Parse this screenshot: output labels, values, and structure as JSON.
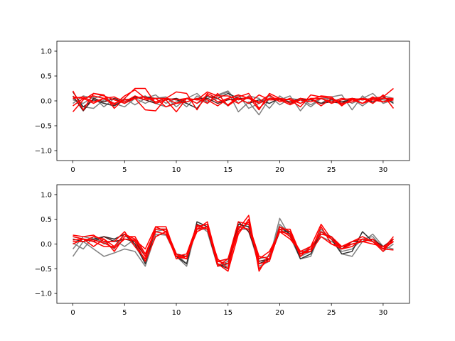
{
  "chart_data": [
    {
      "type": "line",
      "title": "",
      "xlabel": "",
      "ylabel": "",
      "xlim": [
        -1.55,
        32.55
      ],
      "ylim": [
        -1.2,
        1.2
      ],
      "x_ticks": [
        0,
        5,
        10,
        15,
        20,
        25,
        30
      ],
      "y_ticks": [
        -1.0,
        -0.5,
        0.0,
        0.5,
        1.0
      ],
      "x_tick_labels": [
        "0",
        "5",
        "10",
        "15",
        "20",
        "25",
        "30"
      ],
      "y_tick_labels": [
        "−1.0",
        "−0.5",
        "0.0",
        "0.5",
        "1.0"
      ],
      "grid": false,
      "x": [
        0,
        1,
        2,
        3,
        4,
        5,
        6,
        7,
        8,
        9,
        10,
        11,
        12,
        13,
        14,
        15,
        16,
        17,
        18,
        19,
        20,
        21,
        22,
        23,
        24,
        25,
        26,
        27,
        28,
        29,
        30,
        31
      ],
      "series": [
        {
          "color": "#808080",
          "values": [
            0.05,
            -0.12,
            -0.15,
            0.02,
            -0.05,
            -0.12,
            0.05,
            0.1,
            -0.05,
            -0.12,
            -0.02,
            0.05,
            0.15,
            -0.05,
            0.1,
            0.18,
            -0.22,
            -0.02,
            -0.28,
            0.05,
            0.02,
            0.1,
            -0.2,
            0.05,
            -0.05,
            0.08,
            0.12,
            -0.18,
            0.1,
            -0.05,
            0.1,
            0.05
          ]
        },
        {
          "color": "#808080",
          "values": [
            -0.05,
            0.1,
            0.05,
            0.12,
            -0.1,
            0.05,
            -0.08,
            0.05,
            0.12,
            -0.05,
            0.05,
            -0.12,
            0.1,
            -0.02,
            0.05,
            -0.1,
            0.12,
            -0.15,
            -0.05,
            0.1,
            -0.08,
            0.05,
            0.02,
            -0.12,
            0.05,
            -0.02,
            0.05,
            -0.05,
            0.05,
            0.15,
            -0.05,
            0.02
          ]
        },
        {
          "color": "#808080",
          "values": [
            0.02,
            -0.05,
            0.08,
            -0.12,
            0.05,
            0.02,
            0.05,
            -0.05,
            0.05,
            0.08,
            -0.12,
            0.05,
            -0.05,
            0.05,
            0.12,
            0.2,
            -0.05,
            0.1,
            0.05,
            -0.15,
            0.1,
            -0.05,
            0.05,
            -0.08,
            0.05,
            0.05,
            -0.02,
            0.05,
            -0.1,
            0.05,
            0.02,
            -0.02
          ]
        },
        {
          "color": "#303030",
          "values": [
            0.18,
            -0.12,
            0.02,
            -0.05,
            -0.1,
            0.02,
            0.05,
            0.08,
            0.05,
            0.05,
            0.02,
            -0.05,
            -0.15,
            0.1,
            0.05,
            0.15,
            0.05,
            -0.05,
            0.02,
            -0.05,
            0.05,
            -0.05,
            0.02,
            0.02,
            -0.05,
            -0.02,
            -0.05,
            0.05,
            0.02,
            0.05,
            0.08,
            -0.05
          ]
        },
        {
          "color": "#5a1a1a",
          "values": [
            0.1,
            -0.2,
            0.05,
            -0.02,
            0.05,
            -0.05,
            0.08,
            0.02,
            -0.05,
            0.02,
            0.05,
            -0.02,
            0.05,
            0.05,
            -0.05,
            0.02,
            0.05,
            0.05,
            -0.05,
            0.05,
            0.02,
            -0.02,
            0.05,
            0.02,
            -0.05,
            0.02,
            -0.02,
            0.02,
            0.05,
            -0.02,
            0.05,
            0.02
          ]
        },
        {
          "color": "#ff0000",
          "values": [
            0.2,
            -0.18,
            0.15,
            0.12,
            -0.15,
            0.05,
            0.25,
            0.25,
            -0.05,
            0.02,
            -0.22,
            0.05,
            0.02,
            0.18,
            0.1,
            0.1,
            0.02,
            0.08,
            -0.18,
            0.15,
            0.05,
            -0.05,
            0.05,
            0.02,
            0.1,
            0.08,
            -0.1,
            0.05,
            0.02,
            0.05,
            0.08,
            0.25
          ]
        },
        {
          "color": "#ff0000",
          "values": [
            -0.22,
            0.02,
            0.15,
            0.1,
            0.02,
            -0.05,
            0.05,
            -0.18,
            -0.2,
            0.05,
            0.18,
            0.15,
            -0.18,
            0.15,
            0.05,
            -0.08,
            0.08,
            0.15,
            -0.15,
            0.05,
            0.05,
            0.02,
            -0.12,
            0.12,
            0.08,
            0.05,
            -0.05,
            -0.02,
            0.05,
            -0.05,
            0.12,
            -0.15
          ]
        },
        {
          "color": "#ff0000",
          "values": [
            0.05,
            0.08,
            -0.02,
            0.05,
            -0.08,
            0.1,
            0.22,
            0.05,
            0.05,
            -0.12,
            -0.05,
            0.05,
            0.02,
            0.02,
            -0.1,
            0.05,
            0.12,
            0.05,
            -0.02,
            0.12,
            -0.02,
            0.05,
            -0.05,
            0.05,
            -0.1,
            0.05,
            -0.08,
            0.02,
            -0.05,
            0.08,
            -0.02,
            0.05
          ]
        },
        {
          "color": "#ff0000",
          "values": [
            -0.1,
            0.05,
            0.1,
            0.05,
            0.08,
            -0.02,
            0.1,
            0.02,
            0.05,
            0.05,
            -0.05,
            -0.02,
            0.05,
            -0.05,
            0.15,
            -0.1,
            0.05,
            -0.05,
            0.12,
            0.02,
            0.02,
            -0.08,
            0.02,
            -0.02,
            0.05,
            -0.02,
            0.05,
            0.02,
            0.05,
            0.02,
            -0.02,
            0.02
          ]
        },
        {
          "color": "#ff0000",
          "values": [
            0.08,
            0.05,
            -0.05,
            0.05,
            -0.05,
            0.02,
            0.05,
            0.08,
            -0.02,
            0.05,
            0.02,
            0.05,
            -0.05,
            0.12,
            -0.02,
            0.05,
            -0.05,
            0.08,
            -0.05,
            0.05,
            0.05,
            0.02,
            -0.05,
            0.05,
            0.05,
            -0.05,
            0.02,
            0.05,
            -0.05,
            0.02,
            0.05,
            0.05
          ]
        }
      ]
    },
    {
      "type": "line",
      "title": "",
      "xlabel": "",
      "ylabel": "",
      "xlim": [
        -1.55,
        32.55
      ],
      "ylim": [
        -1.2,
        1.2
      ],
      "x_ticks": [
        0,
        5,
        10,
        15,
        20,
        25,
        30
      ],
      "y_ticks": [
        -1.0,
        -0.5,
        0.0,
        0.5,
        1.0
      ],
      "x_tick_labels": [
        "0",
        "5",
        "10",
        "15",
        "20",
        "25",
        "30"
      ],
      "y_tick_labels": [
        "−1.0",
        "−0.5",
        "0.0",
        "0.5",
        "1.0"
      ],
      "grid": false,
      "x": [
        0,
        1,
        2,
        3,
        4,
        5,
        6,
        7,
        8,
        9,
        10,
        11,
        12,
        13,
        14,
        15,
        16,
        17,
        18,
        19,
        20,
        21,
        22,
        23,
        24,
        25,
        26,
        27,
        28,
        29,
        30,
        31
      ],
      "series": [
        {
          "color": "#808080",
          "values": [
            -0.25,
            0.05,
            -0.1,
            -0.25,
            -0.18,
            -0.1,
            -0.15,
            -0.45,
            0.2,
            0.18,
            -0.25,
            -0.45,
            0.4,
            0.25,
            -0.45,
            -0.35,
            0.4,
            0.35,
            -0.4,
            -0.3,
            0.52,
            0.15,
            -0.3,
            -0.25,
            0.25,
            0.15,
            -0.2,
            -0.25,
            0.05,
            0.2,
            -0.05,
            -0.1
          ]
        },
        {
          "color": "#808080",
          "values": [
            -0.1,
            0.15,
            0.1,
            0.05,
            -0.1,
            0.2,
            -0.05,
            -0.35,
            0.25,
            0.3,
            -0.2,
            -0.4,
            0.35,
            0.4,
            -0.35,
            -0.3,
            0.35,
            0.4,
            -0.3,
            -0.25,
            0.4,
            0.2,
            -0.25,
            -0.15,
            0.3,
            0.1,
            -0.15,
            -0.1,
            0.1,
            0.15,
            -0.1,
            0.05
          ]
        },
        {
          "color": "#808080",
          "values": [
            0.02,
            -0.1,
            0.15,
            0.0,
            0.08,
            -0.05,
            0.1,
            -0.2,
            0.15,
            0.25,
            -0.25,
            -0.3,
            0.3,
            0.3,
            -0.4,
            -0.45,
            0.3,
            0.3,
            -0.45,
            -0.35,
            0.3,
            0.25,
            -0.2,
            -0.05,
            0.15,
            0.05,
            -0.05,
            0.0,
            0.05,
            0.1,
            -0.15,
            0.0
          ]
        },
        {
          "color": "#303030",
          "values": [
            0.1,
            0.05,
            0.1,
            0.15,
            0.1,
            0.2,
            0.0,
            -0.4,
            0.3,
            0.3,
            -0.25,
            -0.4,
            0.45,
            0.35,
            -0.4,
            -0.5,
            0.4,
            0.35,
            -0.4,
            -0.3,
            0.35,
            0.2,
            -0.3,
            -0.2,
            0.25,
            0.1,
            -0.2,
            -0.15,
            0.25,
            0.05,
            -0.1,
            0.05
          ]
        },
        {
          "color": "#5a1a1a",
          "values": [
            0.15,
            0.1,
            0.05,
            0.15,
            0.05,
            0.1,
            0.05,
            -0.25,
            0.3,
            0.3,
            -0.2,
            -0.25,
            0.4,
            0.3,
            -0.45,
            -0.4,
            0.45,
            0.25,
            -0.35,
            -0.3,
            0.25,
            0.25,
            -0.2,
            -0.1,
            0.2,
            0.15,
            -0.1,
            0.05,
            0.05,
            0.1,
            -0.05,
            0.1
          ]
        },
        {
          "color": "#ff0000",
          "values": [
            0.18,
            0.15,
            0.18,
            0.05,
            0.05,
            0.25,
            -0.05,
            -0.3,
            0.35,
            0.35,
            -0.25,
            -0.25,
            0.3,
            0.35,
            -0.45,
            -0.3,
            0.3,
            0.58,
            -0.55,
            -0.2,
            0.25,
            0.2,
            -0.15,
            -0.05,
            0.4,
            0.1,
            -0.05,
            0.0,
            0.05,
            0.1,
            -0.1,
            -0.12
          ]
        },
        {
          "color": "#ff0000",
          "values": [
            0.05,
            0.05,
            0.15,
            0.1,
            -0.15,
            0.15,
            0.15,
            -0.2,
            0.3,
            0.3,
            -0.2,
            -0.3,
            0.35,
            0.4,
            -0.4,
            -0.55,
            0.2,
            0.5,
            -0.5,
            -0.3,
            0.3,
            0.3,
            -0.2,
            -0.1,
            0.25,
            0.1,
            -0.1,
            -0.05,
            0.1,
            0.05,
            -0.15,
            0.1
          ]
        },
        {
          "color": "#ff0000",
          "values": [
            0.15,
            0.1,
            0.05,
            -0.05,
            -0.05,
            0.2,
            0.1,
            -0.25,
            0.25,
            0.2,
            -0.25,
            -0.3,
            0.3,
            0.45,
            -0.35,
            -0.3,
            0.45,
            0.4,
            -0.25,
            -0.3,
            0.35,
            0.25,
            -0.25,
            -0.05,
            0.2,
            0.15,
            -0.05,
            0.05,
            0.1,
            0.05,
            -0.1,
            0.15
          ]
        },
        {
          "color": "#ff0000",
          "values": [
            0.0,
            0.1,
            -0.05,
            0.1,
            -0.05,
            0.2,
            0.05,
            -0.35,
            0.15,
            0.25,
            -0.3,
            -0.25,
            0.25,
            0.35,
            -0.3,
            -0.5,
            0.35,
            0.3,
            -0.3,
            -0.15,
            0.25,
            0.1,
            -0.15,
            -0.15,
            0.15,
            0.0,
            -0.1,
            0.0,
            0.05,
            0.0,
            -0.05,
            0.05
          ]
        },
        {
          "color": "#ff0000",
          "values": [
            0.08,
            0.1,
            0.08,
            0.02,
            -0.08,
            0.1,
            0.08,
            -0.1,
            0.35,
            0.25,
            -0.25,
            -0.2,
            0.38,
            0.3,
            -0.35,
            -0.4,
            0.25,
            0.45,
            -0.4,
            -0.35,
            0.3,
            0.15,
            -0.2,
            -0.15,
            0.35,
            0.0,
            -0.05,
            0.05,
            0.15,
            0.05,
            -0.1,
            0.05
          ]
        }
      ]
    }
  ]
}
